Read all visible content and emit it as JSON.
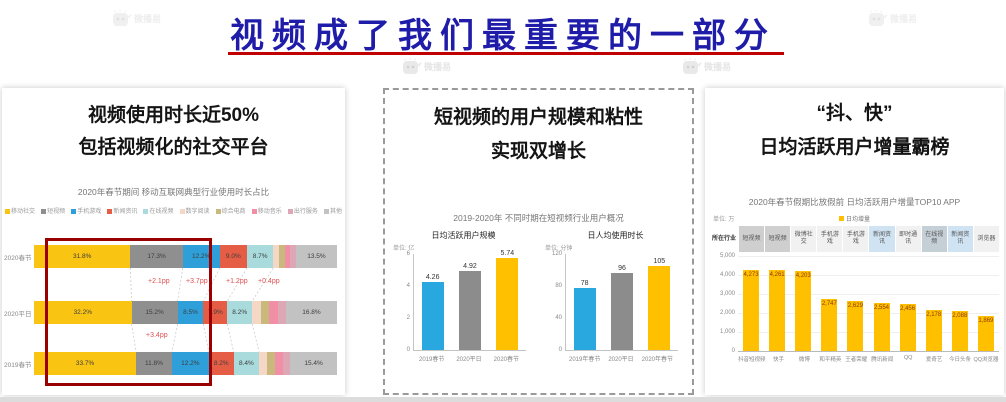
{
  "title": {
    "text": "视频成了我们最重要的一部分"
  },
  "watermark_text": "微播易",
  "accent_colors": {
    "title_blue": "#1e1ca8",
    "underline_red": "#c00000",
    "highlight_box_red": "#9b0000",
    "bar_yellow": "#ffc000"
  },
  "panels": {
    "p1": {
      "heading1": "视频使用时长近50%",
      "heading2": "包括视频化的社交平台"
    },
    "p2": {
      "heading1": "短视频的用户规模和粘性",
      "heading2": "实现双增长",
      "chart_title": "2019-2020年 不同时期在短视频行业用户概况"
    },
    "p3": {
      "heading1": "“抖、快”",
      "heading2": "日均活跃用户增量霸榜"
    }
  },
  "chart_data": [
    {
      "type": "bar",
      "subtype": "horizontal-stacked-100pct",
      "title": "2020年春节期间 移动互联网典型行业使用时长占比",
      "legend": [
        "移动社交",
        "短视频",
        "手机游戏",
        "新闻资讯",
        "在线视频",
        "数字阅读",
        "综合电商",
        "移动音乐",
        "出行服务",
        "其他"
      ],
      "colors": [
        "#f9c412",
        "#8f8f8f",
        "#2e9fd9",
        "#e65d45",
        "#a9dbdd",
        "#f4d7c4",
        "#c9b97c",
        "#f08fa6",
        "#dda7b6",
        "#c2c2c2"
      ],
      "label_min_pct": 7,
      "rows": [
        {
          "category": "2020春节",
          "values": [
            31.8,
            17.3,
            12.2,
            9.0,
            8.7,
            1.8,
            1.9,
            1.9,
            1.9,
            13.5
          ]
        },
        {
          "category": "2020平日",
          "values": [
            32.2,
            15.2,
            8.5,
            7.9,
            8.2,
            2.8,
            2.8,
            2.8,
            2.8,
            16.8
          ]
        },
        {
          "category": "2019春节",
          "values": [
            33.7,
            11.8,
            12.2,
            8.2,
            8.4,
            2.6,
            2.6,
            2.6,
            2.5,
            15.4
          ]
        }
      ],
      "annotations": [
        "+2.1pp",
        "+3.7pp",
        "+1.2pp",
        "+0.4pp",
        "+3.4pp"
      ],
      "highlight": "red box around 短视频 and 手机游戏 segments"
    },
    {
      "type": "bar",
      "title": "日均活跃用户规模",
      "unit": "单位: 亿",
      "categories": [
        "2019春节",
        "2020平日",
        "2020春节"
      ],
      "values": [
        4.26,
        4.92,
        5.74
      ],
      "value_labels": [
        "4.26",
        "4.92",
        "5.74"
      ],
      "colors": [
        "#29a8df",
        "#8c8c8c",
        "#ffc000"
      ],
      "ylim": [
        0,
        6
      ],
      "yticks": [
        "6",
        "4",
        "2",
        "0"
      ]
    },
    {
      "type": "bar",
      "title": "日人均使用时长",
      "unit": "单位: 分钟",
      "categories": [
        "2019年春节",
        "2020平日",
        "2020年春节"
      ],
      "values": [
        78,
        96,
        105
      ],
      "value_labels": [
        "78",
        "96",
        "105"
      ],
      "colors": [
        "#29a8df",
        "#8c8c8c",
        "#ffc000"
      ],
      "ylim": [
        0,
        120
      ],
      "yticks": [
        "120",
        "80",
        "40",
        "0"
      ]
    },
    {
      "type": "bar",
      "title": "2020年春节假期比放假前 日均活跃用户增量TOP10 APP",
      "unit": "单位: 万",
      "legend_label": "日均增量",
      "row_header": "所在行业",
      "industries": [
        {
          "label": "短视频",
          "bg": "#cfcfcf"
        },
        {
          "label": "短视频",
          "bg": "#cfcfcf"
        },
        {
          "label": "微博社交",
          "bg": "#f1f1f1"
        },
        {
          "label": "手机游戏",
          "bg": "#f1f1f1"
        },
        {
          "label": "手机游戏",
          "bg": "#f1f1f1"
        },
        {
          "label": "新闻资讯",
          "bg": "#cfe3f2"
        },
        {
          "label": "即时通讯",
          "bg": "#f1f1f1"
        },
        {
          "label": "在线视频",
          "bg": "#c5cfd6"
        },
        {
          "label": "新闻资讯",
          "bg": "#cfe3f2"
        },
        {
          "label": "浏览器",
          "bg": "#f1f1f1"
        }
      ],
      "categories": [
        "抖音短视频",
        "快手",
        "微博",
        "和平精英",
        "王者荣耀",
        "腾讯新闻",
        "QQ",
        "爱奇艺",
        "今日头条",
        "QQ浏览器"
      ],
      "values": [
        4273,
        4261,
        4203,
        2747,
        2629,
        2554,
        2456,
        2178,
        2088,
        1869
      ],
      "value_labels": [
        "4,273",
        "4,261",
        "4,203",
        "2,747",
        "2,629",
        "2,554",
        "2,456",
        "2,178",
        "2,088",
        "1,869"
      ],
      "bar_color": "#ffc000",
      "ylim": [
        0,
        5000
      ],
      "yticks": [
        "5,000",
        "4,000",
        "3,000",
        "2,000",
        "1,000",
        "0"
      ]
    }
  ]
}
